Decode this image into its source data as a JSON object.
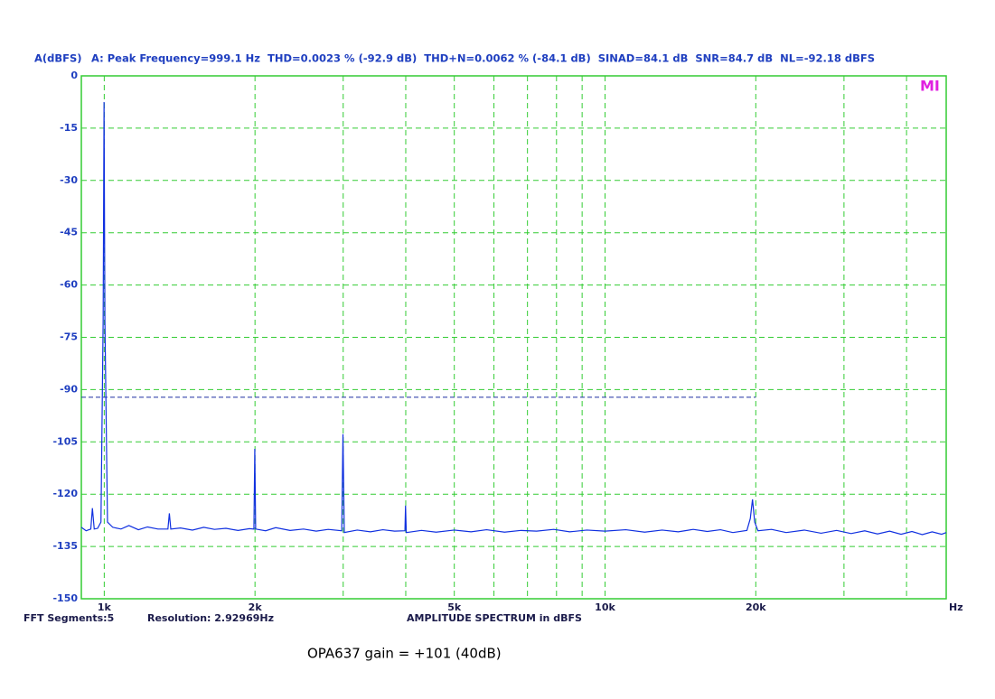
{
  "chart_data": {
    "type": "line",
    "y_label": "A(dBFS)",
    "title": "A: Peak Frequency=999.1 Hz  THD=0.0023 % (-92.9 dB)  THD+N=0.0062 % (-84.1 dB)  SINAD=84.1 dB  SNR=84.7 dB  NL=-92.18 dBFS",
    "x_label": "AMPLITUDE SPECTRUM in dBFS",
    "x_unit": "Hz",
    "footer_left": "FFT Segments:5",
    "footer_resolution": "Resolution: 2.92969Hz",
    "corner_label": "MI",
    "caption": "OPA637 gain = +101 (40dB)",
    "x_log": true,
    "xlim": [
      900,
      48000
    ],
    "ylim": [
      -150,
      0
    ],
    "yticks": [
      0,
      -15,
      -30,
      -45,
      -60,
      -75,
      -90,
      -105,
      -120,
      -135,
      -150
    ],
    "xticks": [
      {
        "value": 1000,
        "label": "1k"
      },
      {
        "value": 2000,
        "label": "2k"
      },
      {
        "value": 5000,
        "label": "5k"
      },
      {
        "value": 10000,
        "label": "10k"
      },
      {
        "value": 20000,
        "label": "20k"
      }
    ],
    "xminor": [
      3000,
      4000,
      6000,
      7000,
      8000,
      9000,
      30000,
      40000
    ],
    "grid": true,
    "reference_line": {
      "value": -92.18,
      "x_end": 20000,
      "color": "#1f2fa0"
    },
    "series": [
      {
        "name": "A",
        "color": "#1030e0",
        "x": [
          900,
          920,
          940,
          947,
          955,
          970,
          985,
          995,
          999.1,
          1003,
          1015,
          1040,
          1080,
          1120,
          1170,
          1220,
          1280,
          1340,
          1349,
          1358,
          1420,
          1500,
          1580,
          1660,
          1750,
          1850,
          1950,
          1990,
          1998,
          2006,
          2100,
          2200,
          2350,
          2500,
          2650,
          2800,
          2980,
          2997,
          3015,
          3200,
          3400,
          3600,
          3800,
          3985,
          3996,
          4010,
          4300,
          4600,
          5000,
          5400,
          5800,
          6300,
          6800,
          7300,
          7900,
          8500,
          9200,
          10000,
          11000,
          12000,
          13000,
          14000,
          15000,
          16000,
          17000,
          18000,
          19200,
          19500,
          19700,
          19900,
          20200,
          21500,
          23000,
          25000,
          27000,
          29000,
          31000,
          33000,
          35000,
          37000,
          39000,
          41000,
          43000,
          45000,
          47000,
          48000
        ],
        "values": [
          -129.5,
          -130.5,
          -130,
          -124,
          -130,
          -129.8,
          -128,
          -70,
          -7.5,
          -70,
          -128,
          -129.5,
          -130,
          -129,
          -130.2,
          -129.4,
          -130,
          -130,
          -125.5,
          -130,
          -129.7,
          -130.3,
          -129.5,
          -130.1,
          -129.8,
          -130.4,
          -129.9,
          -130,
          -107,
          -130,
          -130.5,
          -129.6,
          -130.4,
          -130,
          -130.6,
          -130.1,
          -130.5,
          -102.8,
          -131,
          -130.3,
          -130.8,
          -130.2,
          -130.6,
          -130.5,
          -123.3,
          -131,
          -130.4,
          -130.9,
          -130.3,
          -130.8,
          -130.2,
          -130.9,
          -130.4,
          -130.6,
          -130.1,
          -130.8,
          -130.3,
          -130.6,
          -130.2,
          -130.9,
          -130.3,
          -130.8,
          -130.1,
          -130.7,
          -130.2,
          -131,
          -130.4,
          -127,
          -121.5,
          -128,
          -130.5,
          -130.1,
          -131,
          -130.3,
          -131.2,
          -130.4,
          -131.3,
          -130.5,
          -131.4,
          -130.6,
          -131.5,
          -130.7,
          -131.6,
          -130.8,
          -131.5,
          -131
        ]
      }
    ]
  }
}
